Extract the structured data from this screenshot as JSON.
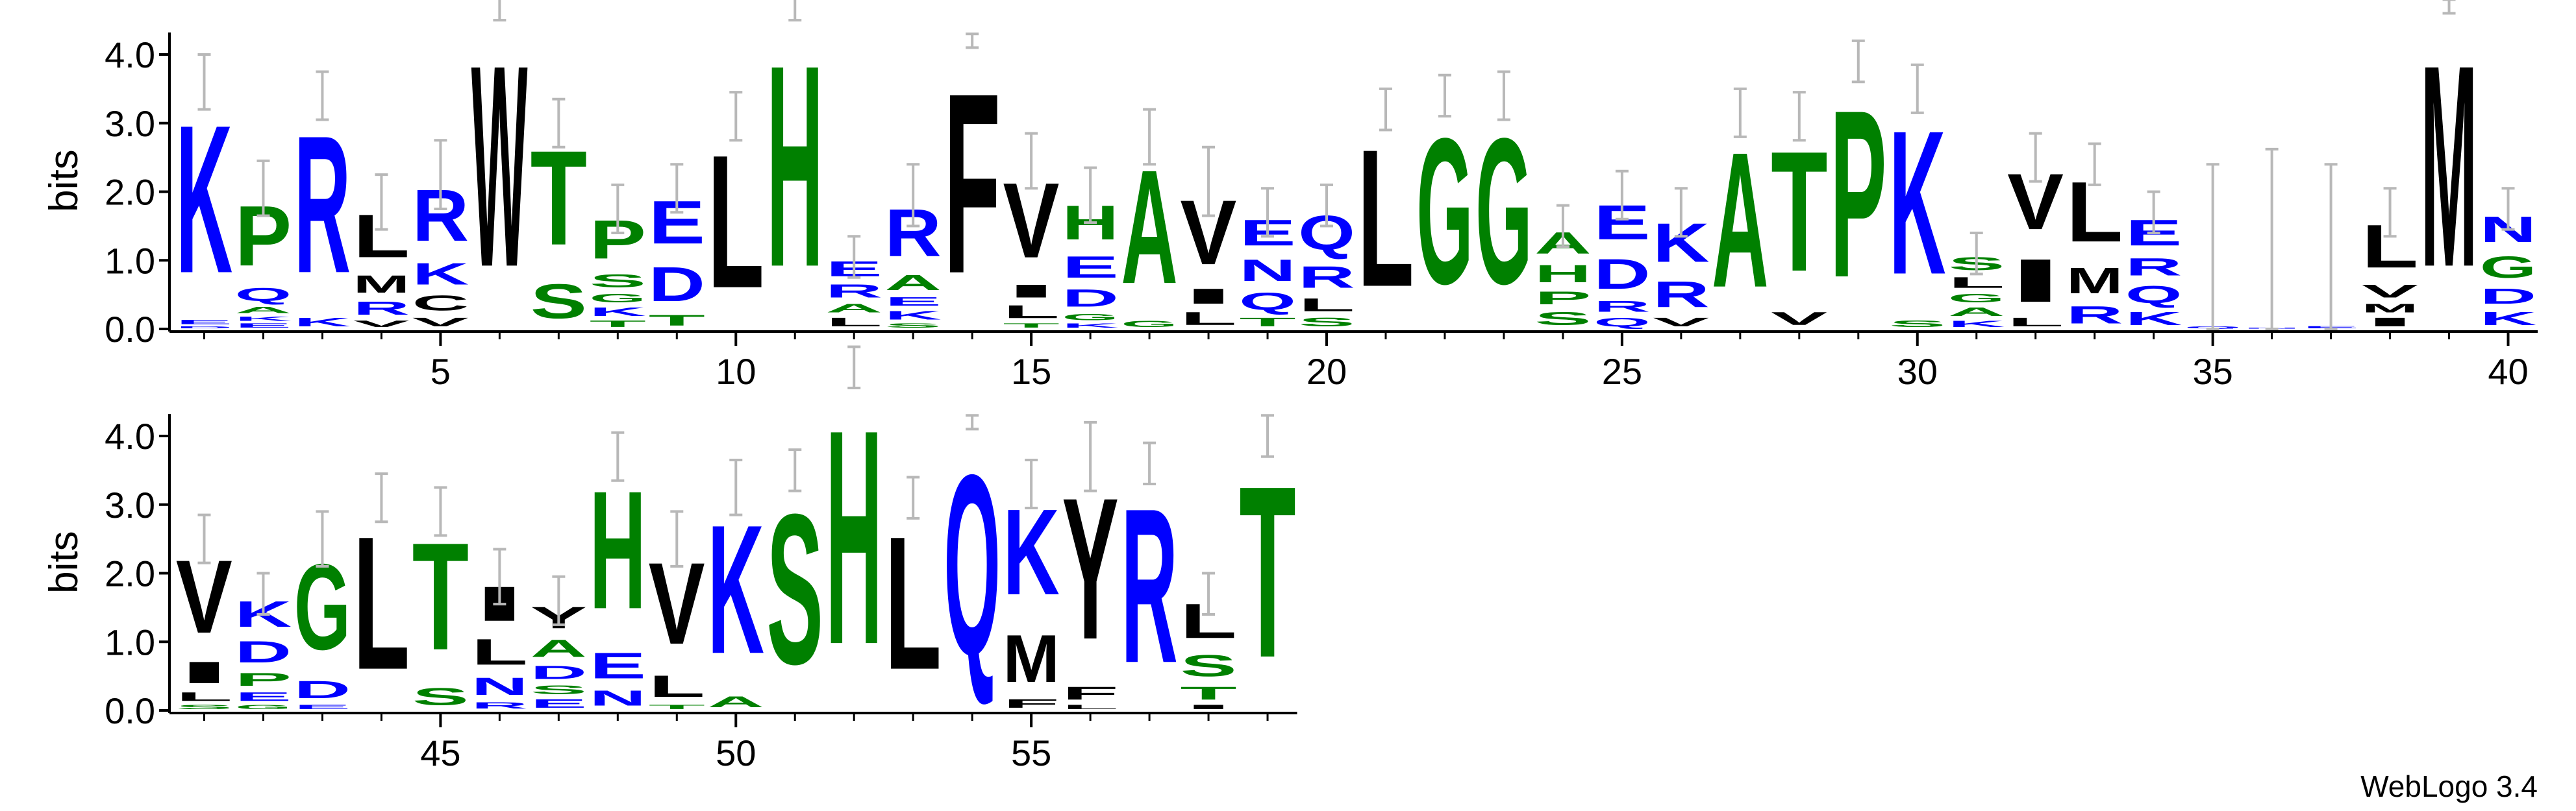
{
  "chart_data": [
    {
      "type": "sequence_logo",
      "ylabel": "bits",
      "x": [
        1,
        2,
        3,
        4,
        5,
        6,
        7,
        8,
        9,
        10,
        11,
        12,
        13,
        14,
        15,
        16,
        17,
        18,
        19,
        20,
        21,
        22,
        23,
        24,
        25,
        26,
        27,
        28,
        29,
        30,
        31,
        32,
        33,
        34,
        35,
        36,
        37,
        38,
        39,
        40
      ],
      "xlim": [
        0.5,
        40.5
      ],
      "xticks": [
        5,
        10,
        15,
        20,
        25,
        30,
        35,
        40
      ],
      "ylim": [
        0,
        4.32
      ],
      "yticks": [
        {
          "value": 0,
          "label": "0.0"
        },
        {
          "value": 1,
          "label": "1.0"
        },
        {
          "value": 2,
          "label": "2.0"
        },
        {
          "value": 3,
          "label": "3.0"
        },
        {
          "value": 4,
          "label": "4.0"
        }
      ],
      "letter_colors": {
        "K": "#0000ff",
        "R": "#0000ff",
        "E": "#0000ff",
        "D": "#0000ff",
        "Q": "#0000ff",
        "N": "#0000ff",
        "P": "#008000",
        "T": "#008000",
        "H": "#008000",
        "A": "#008000",
        "G": "#008000",
        "S": "#008000",
        "L": "#000000",
        "W": "#000000",
        "F": "#000000",
        "V": "#000000",
        "M": "#000000",
        "Y": "#000000",
        "I": "#000000",
        "C": "#000000"
      },
      "error_color": "#b8b8b8",
      "stacks": [
        {
          "letters": [
            "K",
            "E",
            "D"
          ],
          "heights": [
            3.45,
            0.1,
            0.05
          ],
          "error": 0.4
        },
        {
          "letters": [
            "P",
            "Q",
            "A",
            "K",
            "E"
          ],
          "heights": [
            1.4,
            0.3,
            0.15,
            0.1,
            0.1
          ],
          "error": 0.4
        },
        {
          "letters": [
            "R",
            "K"
          ],
          "heights": [
            3.2,
            0.2
          ],
          "error": 0.35
        },
        {
          "letters": [
            "L",
            "M",
            "R",
            "V"
          ],
          "heights": [
            1.0,
            0.4,
            0.3,
            0.15
          ],
          "error": 0.4
        },
        {
          "letters": [
            "R",
            "K",
            "C",
            "V"
          ],
          "heights": [
            1.2,
            0.5,
            0.35,
            0.2
          ],
          "error": 0.5
        },
        {
          "letters": [
            "W"
          ],
          "heights": [
            4.7
          ],
          "error": 0.2
        },
        {
          "letters": [
            "T",
            "S"
          ],
          "heights": [
            2.2,
            0.8
          ],
          "error": 0.35
        },
        {
          "letters": [
            "P",
            "S",
            "G",
            "K",
            "T"
          ],
          "heights": [
            0.9,
            0.3,
            0.2,
            0.2,
            0.15
          ],
          "error": 0.35
        },
        {
          "letters": [
            "E",
            "D",
            "T"
          ],
          "heights": [
            1.0,
            0.8,
            0.25
          ],
          "error": 0.35
        },
        {
          "letters": [
            "L"
          ],
          "heights": [
            3.1
          ],
          "error": 0.35
        },
        {
          "letters": [
            "H"
          ],
          "heights": [
            4.7
          ],
          "error": 0.2
        },
        {
          "letters": [
            "E",
            "R",
            "A",
            "L"
          ],
          "heights": [
            0.35,
            0.3,
            0.2,
            0.2
          ],
          "error": 0.3
        },
        {
          "letters": [
            "R",
            "A",
            "E",
            "K",
            "S"
          ],
          "heights": [
            1.1,
            0.35,
            0.2,
            0.2,
            0.1
          ],
          "error": 0.45
        },
        {
          "letters": [
            "F"
          ],
          "heights": [
            4.2
          ],
          "error": 0.1
        },
        {
          "letters": [
            "V",
            "I",
            "L",
            "T"
          ],
          "heights": [
            1.75,
            0.3,
            0.3,
            0.1
          ],
          "error": 0.4
        },
        {
          "letters": [
            "H",
            "E",
            "D",
            "G",
            "K"
          ],
          "heights": [
            0.8,
            0.5,
            0.4,
            0.15,
            0.1
          ],
          "error": 0.4
        },
        {
          "letters": [
            "A",
            "G"
          ],
          "heights": [
            2.65,
            0.15
          ],
          "error": 0.4
        },
        {
          "letters": [
            "V",
            "I",
            "L"
          ],
          "heights": [
            1.5,
            0.35,
            0.3
          ],
          "error": 0.5
        },
        {
          "letters": [
            "E",
            "N",
            "Q",
            "T"
          ],
          "heights": [
            0.6,
            0.5,
            0.4,
            0.2
          ],
          "error": 0.35
        },
        {
          "letters": [
            "Q",
            "R",
            "L",
            "S"
          ],
          "heights": [
            0.8,
            0.5,
            0.3,
            0.2
          ],
          "error": 0.3
        },
        {
          "letters": [
            "L"
          ],
          "heights": [
            3.2
          ],
          "error": 0.3
        },
        {
          "letters": [
            "G"
          ],
          "heights": [
            3.4
          ],
          "error": 0.3
        },
        {
          "letters": [
            "G"
          ],
          "heights": [
            3.4
          ],
          "error": 0.35
        },
        {
          "letters": [
            "A",
            "H",
            "P",
            "S"
          ],
          "heights": [
            0.5,
            0.4,
            0.3,
            0.3
          ],
          "error": 0.3
        },
        {
          "letters": [
            "E",
            "D",
            "R",
            "Q"
          ],
          "heights": [
            0.8,
            0.7,
            0.25,
            0.2
          ],
          "error": 0.35
        },
        {
          "letters": [
            "K",
            "R",
            "V"
          ],
          "heights": [
            0.9,
            0.6,
            0.2
          ],
          "error": 0.35
        },
        {
          "letters": [
            "A"
          ],
          "heights": [
            3.15
          ],
          "error": 0.35
        },
        {
          "letters": [
            "T",
            "V"
          ],
          "heights": [
            2.8,
            0.3
          ],
          "error": 0.35
        },
        {
          "letters": [
            "P"
          ],
          "heights": [
            3.9
          ],
          "error": 0.3
        },
        {
          "letters": [
            "K",
            "S"
          ],
          "heights": [
            3.35,
            0.15
          ],
          "error": 0.35
        },
        {
          "letters": [
            "S",
            "L",
            "G",
            "A",
            "K"
          ],
          "heights": [
            0.3,
            0.25,
            0.2,
            0.2,
            0.15
          ],
          "error": 0.3
        },
        {
          "letters": [
            "V",
            "I",
            "L"
          ],
          "heights": [
            1.3,
            1.0,
            0.2
          ],
          "error": 0.35
        },
        {
          "letters": [
            "L",
            "M",
            "R"
          ],
          "heights": [
            1.4,
            0.6,
            0.4
          ],
          "error": 0.3
        },
        {
          "letters": [
            "E",
            "R",
            "Q",
            "K"
          ],
          "heights": [
            0.6,
            0.4,
            0.4,
            0.3
          ],
          "error": 0.3
        },
        {
          "letters": [
            "Q"
          ],
          "heights": [
            0.05
          ],
          "error": 2.35
        },
        {
          "letters": [
            "N"
          ],
          "heights": [
            0.02
          ],
          "error": 2.6
        },
        {
          "letters": [
            "E"
          ],
          "heights": [
            0.05
          ],
          "error": 2.35
        },
        {
          "letters": [
            "L",
            "V",
            "M",
            "I"
          ],
          "heights": [
            1.0,
            0.3,
            0.2,
            0.2
          ],
          "error": 0.35
        },
        {
          "letters": [
            "M"
          ],
          "heights": [
            4.7
          ],
          "error": 0.1
        },
        {
          "letters": [
            "N",
            "G",
            "D",
            "K"
          ],
          "heights": [
            0.6,
            0.5,
            0.35,
            0.3
          ],
          "error": 0.3
        }
      ]
    },
    {
      "type": "sequence_logo",
      "ylabel": "bits",
      "x": [
        41,
        42,
        43,
        44,
        45,
        46,
        47,
        48,
        49,
        50,
        51,
        52,
        53,
        54,
        55,
        56,
        57,
        58,
        59
      ],
      "xlim": [
        40.5,
        59.5
      ],
      "xticks": [
        45,
        50,
        55
      ],
      "ylim": [
        0,
        4.32
      ],
      "yticks": [
        {
          "value": 0,
          "label": "0.0"
        },
        {
          "value": 1,
          "label": "1.0"
        },
        {
          "value": 2,
          "label": "2.0"
        },
        {
          "value": 3,
          "label": "3.0"
        },
        {
          "value": 4,
          "label": "4.0"
        }
      ],
      "letter_colors": {
        "K": "#0000ff",
        "R": "#0000ff",
        "E": "#0000ff",
        "D": "#0000ff",
        "Q": "#0000ff",
        "N": "#0000ff",
        "P": "#008000",
        "T": "#008000",
        "H": "#008000",
        "A": "#008000",
        "G": "#008000",
        "S": "#008000",
        "L": "#000000",
        "W": "#000000",
        "F": "#000000",
        "V": "#000000",
        "M": "#000000",
        "Y": "#000000",
        "I": "#000000",
        "C": "#000000"
      },
      "error_color": "#b8b8b8",
      "stacks": [
        {
          "letters": [
            "V",
            "I",
            "L",
            "S"
          ],
          "heights": [
            1.7,
            0.5,
            0.2,
            0.1
          ],
          "error": 0.35
        },
        {
          "letters": [
            "K",
            "D",
            "P",
            "E",
            "G"
          ],
          "heights": [
            0.6,
            0.5,
            0.3,
            0.2,
            0.1
          ],
          "error": 0.3
        },
        {
          "letters": [
            "G",
            "D",
            "E"
          ],
          "heights": [
            2.0,
            0.4,
            0.1
          ],
          "error": 0.4
        },
        {
          "letters": [
            "L"
          ],
          "heights": [
            3.1
          ],
          "error": 0.35
        },
        {
          "letters": [
            "T",
            "S"
          ],
          "heights": [
            2.5,
            0.4
          ],
          "error": 0.35
        },
        {
          "letters": [
            "I",
            "L",
            "N",
            "R"
          ],
          "heights": [
            0.8,
            0.6,
            0.4,
            0.15
          ],
          "error": 0.4
        },
        {
          "letters": [
            "Y",
            "A",
            "D",
            "S",
            "E"
          ],
          "heights": [
            0.5,
            0.4,
            0.3,
            0.2,
            0.2
          ],
          "error": 0.35
        },
        {
          "letters": [
            "H",
            "E",
            "N"
          ],
          "heights": [
            2.75,
            0.6,
            0.35
          ],
          "error": 0.35
        },
        {
          "letters": [
            "V",
            "L",
            "T"
          ],
          "heights": [
            1.9,
            0.5,
            0.1
          ],
          "error": 0.4
        },
        {
          "letters": [
            "K",
            "A"
          ],
          "heights": [
            3.0,
            0.25
          ],
          "error": 0.4
        },
        {
          "letters": [
            "S"
          ],
          "heights": [
            3.5
          ],
          "error": 0.3
        },
        {
          "letters": [
            "H"
          ],
          "heights": [
            5.0
          ],
          "error": 0.3
        },
        {
          "letters": [
            "L"
          ],
          "heights": [
            3.1
          ],
          "error": 0.3
        },
        {
          "letters": [
            "Q"
          ],
          "heights": [
            4.2
          ],
          "error": 0.1
        },
        {
          "letters": [
            "K",
            "M",
            "F"
          ],
          "heights": [
            2.0,
            1.1,
            0.2
          ],
          "error": 0.35
        },
        {
          "letters": [
            "Y",
            "F",
            "L"
          ],
          "heights": [
            3.3,
            0.3,
            0.1
          ],
          "error": 0.5
        },
        {
          "letters": [
            "R"
          ],
          "heights": [
            3.6
          ],
          "error": 0.3
        },
        {
          "letters": [
            "L",
            "S",
            "T",
            "I"
          ],
          "heights": [
            0.8,
            0.5,
            0.3,
            0.1
          ],
          "error": 0.3
        },
        {
          "letters": [
            "T"
          ],
          "heights": [
            4.0
          ],
          "error": 0.3
        }
      ]
    }
  ],
  "footer": "WebLogo 3.4"
}
